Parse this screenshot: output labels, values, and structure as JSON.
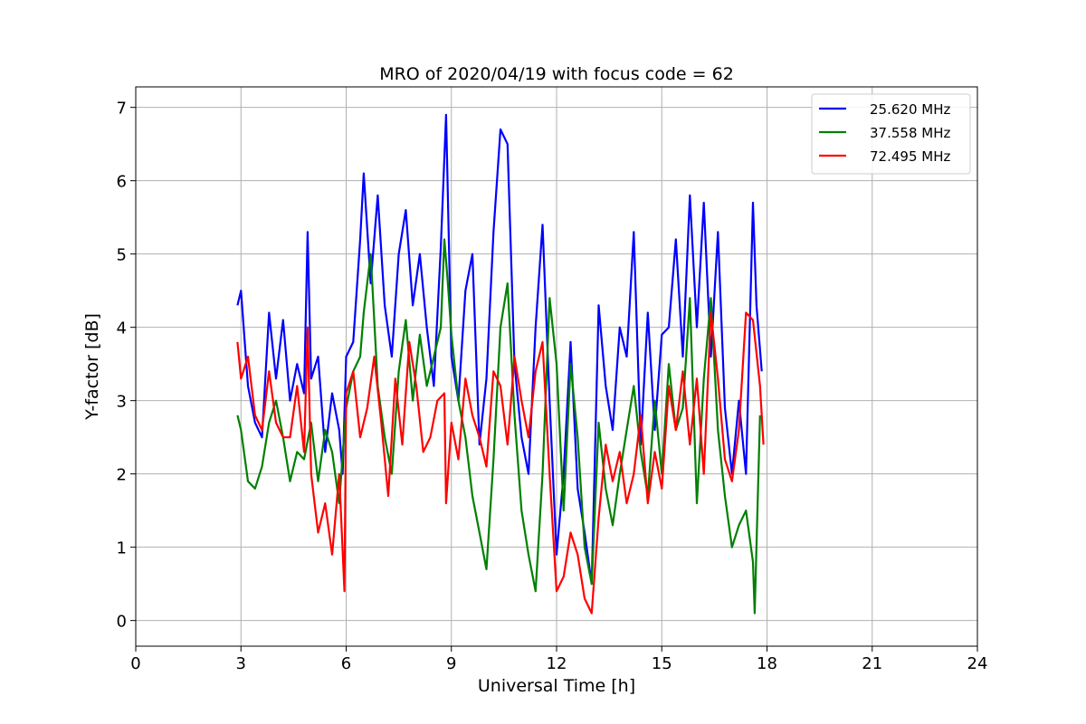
{
  "chart_data": {
    "type": "line",
    "title": "MRO of 2020/04/19 with focus code = 62",
    "xlabel": "Universal Time [h]",
    "ylabel": "Y-factor [dB]",
    "xlim": [
      0,
      24
    ],
    "ylim": [
      -0.35,
      7.28
    ],
    "xticks": [
      0,
      3,
      6,
      9,
      12,
      15,
      18,
      21,
      24
    ],
    "yticks": [
      0,
      1,
      2,
      3,
      4,
      5,
      6,
      7
    ],
    "grid": true,
    "legend_position": "top-right",
    "series": [
      {
        "name": "25.620 MHz",
        "color": "#0000ff",
        "x": [
          2.9,
          3.0,
          3.2,
          3.4,
          3.6,
          3.8,
          4.0,
          4.2,
          4.4,
          4.6,
          4.8,
          4.9,
          5.0,
          5.2,
          5.4,
          5.6,
          5.8,
          5.9,
          6.0,
          6.2,
          6.4,
          6.5,
          6.7,
          6.9,
          7.1,
          7.3,
          7.5,
          7.7,
          7.9,
          8.1,
          8.3,
          8.5,
          8.7,
          8.85,
          9.0,
          9.2,
          9.4,
          9.6,
          9.8,
          10.0,
          10.2,
          10.4,
          10.6,
          10.8,
          11.0,
          11.2,
          11.4,
          11.6,
          11.8,
          12.0,
          12.2,
          12.4,
          12.6,
          12.8,
          13.0,
          13.2,
          13.4,
          13.6,
          13.8,
          14.0,
          14.2,
          14.4,
          14.6,
          14.8,
          15.0,
          15.2,
          15.4,
          15.6,
          15.8,
          16.0,
          16.2,
          16.4,
          16.6,
          16.8,
          17.0,
          17.2,
          17.4,
          17.6,
          17.7,
          17.85
        ],
        "y": [
          4.3,
          4.5,
          3.2,
          2.7,
          2.5,
          4.2,
          3.3,
          4.1,
          3.0,
          3.5,
          3.1,
          5.3,
          3.3,
          3.6,
          2.3,
          3.1,
          2.6,
          2.0,
          3.6,
          3.8,
          5.2,
          6.1,
          4.6,
          5.8,
          4.3,
          3.6,
          5.0,
          5.6,
          4.3,
          5.0,
          4.0,
          3.2,
          5.1,
          6.9,
          3.6,
          3.0,
          4.5,
          5.0,
          2.4,
          3.3,
          5.3,
          6.7,
          6.5,
          3.5,
          2.5,
          2.0,
          4.0,
          5.4,
          3.0,
          0.9,
          2.0,
          3.8,
          1.8,
          1.2,
          0.5,
          4.3,
          3.2,
          2.6,
          4.0,
          3.6,
          5.3,
          2.4,
          4.2,
          2.6,
          3.9,
          4.0,
          5.2,
          3.6,
          5.8,
          4.0,
          5.7,
          3.6,
          5.3,
          2.9,
          2.0,
          3.0,
          2.0,
          5.7,
          4.3,
          3.4
        ]
      },
      {
        "name": "37.558 MHz",
        "color": "#008000",
        "x": [
          2.9,
          3.0,
          3.2,
          3.4,
          3.6,
          3.8,
          4.0,
          4.2,
          4.4,
          4.6,
          4.8,
          5.0,
          5.2,
          5.4,
          5.6,
          5.8,
          6.0,
          6.2,
          6.4,
          6.5,
          6.7,
          6.9,
          7.1,
          7.3,
          7.5,
          7.7,
          7.9,
          8.1,
          8.3,
          8.5,
          8.7,
          8.8,
          8.9,
          9.0,
          9.2,
          9.4,
          9.6,
          9.8,
          10.0,
          10.2,
          10.4,
          10.6,
          10.8,
          11.0,
          11.2,
          11.4,
          11.6,
          11.8,
          12.0,
          12.2,
          12.4,
          12.6,
          12.8,
          13.0,
          13.2,
          13.4,
          13.6,
          13.8,
          14.0,
          14.2,
          14.4,
          14.6,
          14.8,
          15.0,
          15.2,
          15.4,
          15.6,
          15.8,
          16.0,
          16.2,
          16.4,
          16.6,
          16.8,
          17.0,
          17.2,
          17.4,
          17.6,
          17.65,
          17.8
        ],
        "y": [
          2.8,
          2.6,
          1.9,
          1.8,
          2.1,
          2.7,
          3.0,
          2.5,
          1.9,
          2.3,
          2.2,
          2.7,
          1.9,
          2.6,
          2.3,
          1.6,
          2.9,
          3.4,
          3.6,
          4.2,
          5.0,
          3.2,
          2.5,
          2.0,
          3.4,
          4.1,
          3.0,
          3.9,
          3.2,
          3.6,
          4.0,
          5.2,
          4.6,
          3.9,
          3.0,
          2.5,
          1.7,
          1.2,
          0.7,
          2.2,
          4.0,
          4.6,
          2.8,
          1.5,
          0.9,
          0.4,
          2.0,
          4.4,
          3.5,
          1.5,
          3.5,
          2.5,
          1.0,
          0.5,
          2.7,
          1.8,
          1.3,
          2.0,
          2.6,
          3.2,
          2.3,
          1.7,
          3.0,
          2.0,
          3.5,
          2.6,
          2.9,
          4.4,
          1.6,
          3.3,
          4.4,
          2.6,
          1.7,
          1.0,
          1.3,
          1.5,
          0.8,
          0.1,
          2.8
        ]
      },
      {
        "name": "72.495 MHz",
        "color": "#ff0000",
        "x": [
          2.9,
          3.0,
          3.2,
          3.4,
          3.6,
          3.8,
          4.0,
          4.2,
          4.4,
          4.6,
          4.8,
          4.9,
          5.0,
          5.2,
          5.4,
          5.6,
          5.8,
          5.95,
          6.0,
          6.2,
          6.4,
          6.6,
          6.8,
          7.0,
          7.2,
          7.4,
          7.6,
          7.8,
          8.0,
          8.2,
          8.4,
          8.6,
          8.8,
          8.85,
          9.0,
          9.2,
          9.4,
          9.6,
          9.8,
          10.0,
          10.2,
          10.4,
          10.6,
          10.8,
          11.0,
          11.2,
          11.4,
          11.6,
          11.8,
          12.0,
          12.2,
          12.4,
          12.6,
          12.8,
          13.0,
          13.2,
          13.4,
          13.6,
          13.8,
          14.0,
          14.2,
          14.4,
          14.6,
          14.8,
          15.0,
          15.2,
          15.4,
          15.6,
          15.8,
          16.0,
          16.2,
          16.4,
          16.6,
          16.8,
          17.0,
          17.2,
          17.4,
          17.6,
          17.8,
          17.9
        ],
        "y": [
          3.8,
          3.3,
          3.6,
          2.8,
          2.6,
          3.4,
          2.7,
          2.5,
          2.5,
          3.2,
          2.3,
          4.0,
          2.0,
          1.2,
          1.6,
          0.9,
          2.0,
          0.4,
          3.1,
          3.4,
          2.5,
          2.9,
          3.6,
          2.7,
          1.7,
          3.3,
          2.4,
          3.8,
          3.2,
          2.3,
          2.5,
          3.0,
          3.1,
          1.6,
          2.7,
          2.2,
          3.3,
          2.8,
          2.5,
          2.1,
          3.4,
          3.2,
          2.4,
          3.6,
          3.0,
          2.5,
          3.4,
          3.8,
          2.0,
          0.4,
          0.6,
          1.2,
          0.9,
          0.3,
          0.1,
          1.4,
          2.4,
          1.9,
          2.3,
          1.6,
          2.0,
          2.8,
          1.6,
          2.3,
          1.8,
          3.2,
          2.6,
          3.4,
          2.4,
          3.3,
          2.0,
          4.2,
          3.3,
          2.2,
          1.9,
          2.6,
          4.2,
          4.1,
          3.2,
          2.4
        ]
      }
    ]
  }
}
